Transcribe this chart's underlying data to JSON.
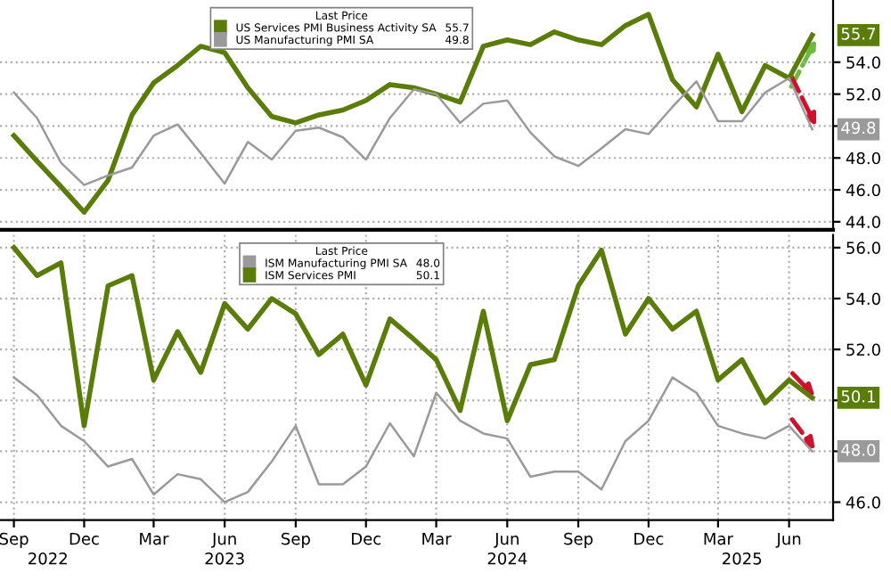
{
  "chart_data": [
    {
      "type": "line",
      "legend_title": "Last Price",
      "legend": "top",
      "grid": true,
      "tick_labels": "y",
      "x": [
        "2022-09",
        "2022-10",
        "2022-11",
        "2022-12",
        "2023-01",
        "2023-02",
        "2023-03",
        "2023-04",
        "2023-05",
        "2023-06",
        "2023-07",
        "2023-08",
        "2023-09",
        "2023-10",
        "2023-11",
        "2023-12",
        "2024-01",
        "2024-02",
        "2024-03",
        "2024-04",
        "2024-05",
        "2024-06",
        "2024-07",
        "2024-08",
        "2024-09",
        "2024-10",
        "2024-11",
        "2024-12",
        "2025-01",
        "2025-02",
        "2025-03",
        "2025-04",
        "2025-05",
        "2025-06",
        "2025-07"
      ],
      "xlim": [
        "2022-08-14",
        "2025-07-28"
      ],
      "ylim": [
        43.5,
        57.9
      ],
      "yticks": [
        {
          "value": 44,
          "label": "44.0"
        },
        {
          "value": 46,
          "label": "46.0"
        },
        {
          "value": 48,
          "label": "48.0"
        },
        {
          "value": 50,
          "label": null
        },
        {
          "value": 52,
          "label": "52.0"
        },
        {
          "value": 54,
          "label": "54.0"
        }
      ],
      "series": [
        {
          "name": "US Services PMI Business Activity SA",
          "color": "#5a7d0a",
          "values": [
            49.4,
            47.8,
            46.2,
            44.6,
            46.6,
            50.7,
            52.7,
            53.8,
            55.0,
            54.6,
            52.4,
            50.6,
            50.2,
            50.7,
            51.0,
            51.6,
            52.6,
            52.4,
            52.0,
            51.5,
            55.0,
            55.4,
            55.1,
            55.9,
            55.4,
            55.1,
            56.3,
            57.0,
            52.9,
            51.2,
            54.5,
            50.9,
            53.8,
            53.0,
            55.7
          ],
          "value_labels": [
            null,
            null,
            null,
            null,
            null,
            null,
            null,
            null,
            null,
            null,
            null,
            null,
            null,
            null,
            null,
            null,
            null,
            null,
            null,
            null,
            null,
            null,
            null,
            null,
            null,
            null,
            null,
            null,
            null,
            null,
            null,
            null,
            null,
            null,
            "55.7"
          ]
        },
        {
          "name": "US Manufacturing PMI SA",
          "color": "#9a9a9a",
          "values": [
            52.1,
            50.5,
            47.7,
            46.3,
            46.9,
            47.4,
            49.4,
            50.1,
            48.3,
            46.4,
            49.0,
            47.9,
            49.7,
            49.9,
            49.3,
            47.9,
            50.5,
            52.3,
            52.0,
            50.2,
            51.4,
            51.6,
            49.6,
            48.1,
            47.5,
            48.6,
            49.8,
            49.5,
            51.2,
            52.8,
            50.3,
            50.3,
            52.1,
            53.0,
            49.8
          ],
          "value_labels": [
            null,
            null,
            null,
            null,
            null,
            null,
            null,
            null,
            null,
            null,
            null,
            null,
            null,
            null,
            null,
            null,
            null,
            null,
            null,
            null,
            null,
            null,
            null,
            null,
            null,
            null,
            null,
            null,
            null,
            null,
            null,
            null,
            null,
            null,
            "49.8"
          ]
        }
      ]
    },
    {
      "type": "line",
      "legend_title": "Last Price",
      "legend": "top",
      "grid": true,
      "x": [
        "2022-09",
        "2022-10",
        "2022-11",
        "2022-12",
        "2023-01",
        "2023-02",
        "2023-03",
        "2023-04",
        "2023-05",
        "2023-06",
        "2023-07",
        "2023-08",
        "2023-09",
        "2023-10",
        "2023-11",
        "2023-12",
        "2024-01",
        "2024-02",
        "2024-03",
        "2024-04",
        "2024-05",
        "2024-06",
        "2024-07",
        "2024-08",
        "2024-09",
        "2024-10",
        "2024-11",
        "2024-12",
        "2025-01",
        "2025-02",
        "2025-03",
        "2025-04",
        "2025-05",
        "2025-06",
        "2025-07"
      ],
      "xlim": [
        "2022-08-14",
        "2025-07-28"
      ],
      "xticks": [
        {
          "value": "2022-09",
          "label": "Sep"
        },
        {
          "value": "2022-12",
          "label": "Dec"
        },
        {
          "value": "2023-03",
          "label": "Mar"
        },
        {
          "value": "2023-06",
          "label": "Jun"
        },
        {
          "value": "2023-09",
          "label": "Sep"
        },
        {
          "value": "2023-12",
          "label": "Dec"
        },
        {
          "value": "2024-03",
          "label": "Mar"
        },
        {
          "value": "2024-06",
          "label": "Jun"
        },
        {
          "value": "2024-09",
          "label": "Sep"
        },
        {
          "value": "2024-12",
          "label": "Dec"
        },
        {
          "value": "2025-03",
          "label": "Mar"
        },
        {
          "value": "2025-06",
          "label": "Jun"
        }
      ],
      "x2lim": [
        "2022-08-14",
        "2025-07-28"
      ],
      "x2ticks": [
        {
          "value": "2022-10-15",
          "label": "2022"
        },
        {
          "value": "2023-06-01",
          "label": "2023"
        },
        {
          "value": "2024-06-01",
          "label": "2024"
        },
        {
          "value": "2025-04-01",
          "label": "2025"
        }
      ],
      "ylim": [
        45.3,
        56.5
      ],
      "yticks": [
        {
          "value": 46,
          "label": "46.0"
        },
        {
          "value": 48,
          "label": null
        },
        {
          "value": 50,
          "label": null
        },
        {
          "value": 52,
          "label": "52.0"
        },
        {
          "value": 54,
          "label": "54.0"
        },
        {
          "value": 56,
          "label": "56.0"
        }
      ],
      "series": [
        {
          "name": "ISM Manufacturing PMI SA",
          "color": "#9a9a9a",
          "values": [
            50.9,
            50.2,
            49.0,
            48.4,
            47.4,
            47.7,
            46.3,
            47.1,
            46.9,
            46.0,
            46.4,
            47.6,
            49.0,
            46.7,
            46.7,
            47.4,
            49.1,
            47.8,
            50.3,
            49.2,
            48.7,
            48.5,
            47.0,
            47.2,
            47.2,
            46.5,
            48.4,
            49.2,
            50.9,
            50.3,
            49.0,
            48.7,
            48.5,
            49.0,
            48.0
          ],
          "value_labels": [
            null,
            null,
            null,
            null,
            null,
            null,
            null,
            null,
            null,
            null,
            null,
            null,
            null,
            null,
            null,
            null,
            null,
            null,
            null,
            null,
            null,
            null,
            null,
            null,
            null,
            null,
            null,
            null,
            null,
            null,
            null,
            null,
            null,
            null,
            "48.0"
          ]
        },
        {
          "name": "ISM Services PMI",
          "color": "#5a7d0a",
          "values": [
            56.0,
            54.9,
            55.4,
            49.0,
            54.5,
            54.9,
            50.8,
            52.7,
            51.1,
            53.8,
            52.8,
            54.0,
            53.4,
            51.8,
            52.6,
            50.6,
            53.2,
            52.4,
            51.6,
            49.6,
            53.5,
            49.2,
            51.4,
            51.6,
            54.5,
            55.9,
            52.6,
            54.0,
            52.8,
            53.5,
            50.8,
            51.6,
            49.9,
            50.8,
            50.1
          ],
          "value_labels": [
            null,
            null,
            null,
            null,
            null,
            null,
            null,
            null,
            null,
            null,
            null,
            null,
            null,
            null,
            null,
            null,
            null,
            null,
            null,
            null,
            null,
            null,
            null,
            null,
            null,
            null,
            null,
            null,
            null,
            null,
            null,
            null,
            null,
            null,
            "50.1"
          ]
        }
      ]
    }
  ]
}
